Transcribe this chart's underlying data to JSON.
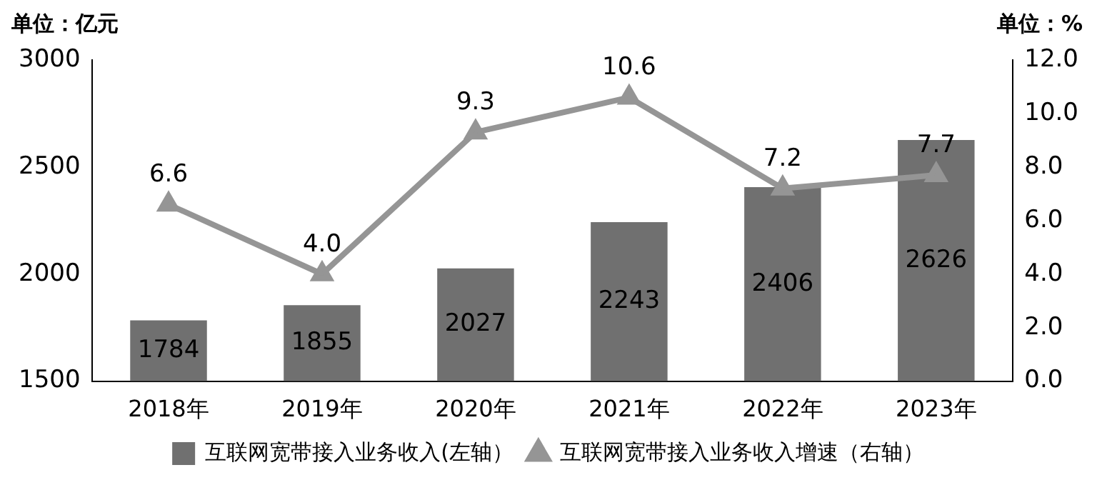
{
  "chart_data": {
    "type": "bar",
    "ylabel": "单位：亿元",
    "y2label": "单位：%",
    "categories": [
      "2018年",
      "2019年",
      "2020年",
      "2021年",
      "2022年",
      "2023年"
    ],
    "series": [
      {
        "name": "互联网宽带接入业务收入(左轴）",
        "color": "#707070",
        "values": [
          1784,
          1855,
          2027,
          2243,
          2406,
          2626
        ],
        "value_labels": [
          "1784",
          "1855",
          "2027",
          "2243",
          "2406",
          "2626"
        ]
      },
      {
        "name": "互联网宽带接入业务收入增速（右轴）",
        "type": "line",
        "axis": "y2",
        "color": "#959595",
        "marker": "triangle",
        "values": [
          6.6,
          4.0,
          9.3,
          10.6,
          7.2,
          7.7
        ],
        "value_labels": [
          "6.6",
          "4.0",
          "9.3",
          "10.6",
          "7.2",
          "7.7"
        ]
      }
    ],
    "ylim": [
      1500,
      3000
    ],
    "yticks": [
      1500,
      2000,
      2500,
      3000
    ],
    "y2lim": [
      0,
      12
    ],
    "y2ticks": [
      {
        "value": 0,
        "label": "0.0"
      },
      {
        "value": 2,
        "label": "2.0"
      },
      {
        "value": 4,
        "label": "4.0"
      },
      {
        "value": 6,
        "label": "6.0"
      },
      {
        "value": 8,
        "label": "8.0"
      },
      {
        "value": 10,
        "label": "10.0"
      },
      {
        "value": 12,
        "label": "12.0"
      }
    ],
    "grid": false,
    "legend": "bottom"
  }
}
